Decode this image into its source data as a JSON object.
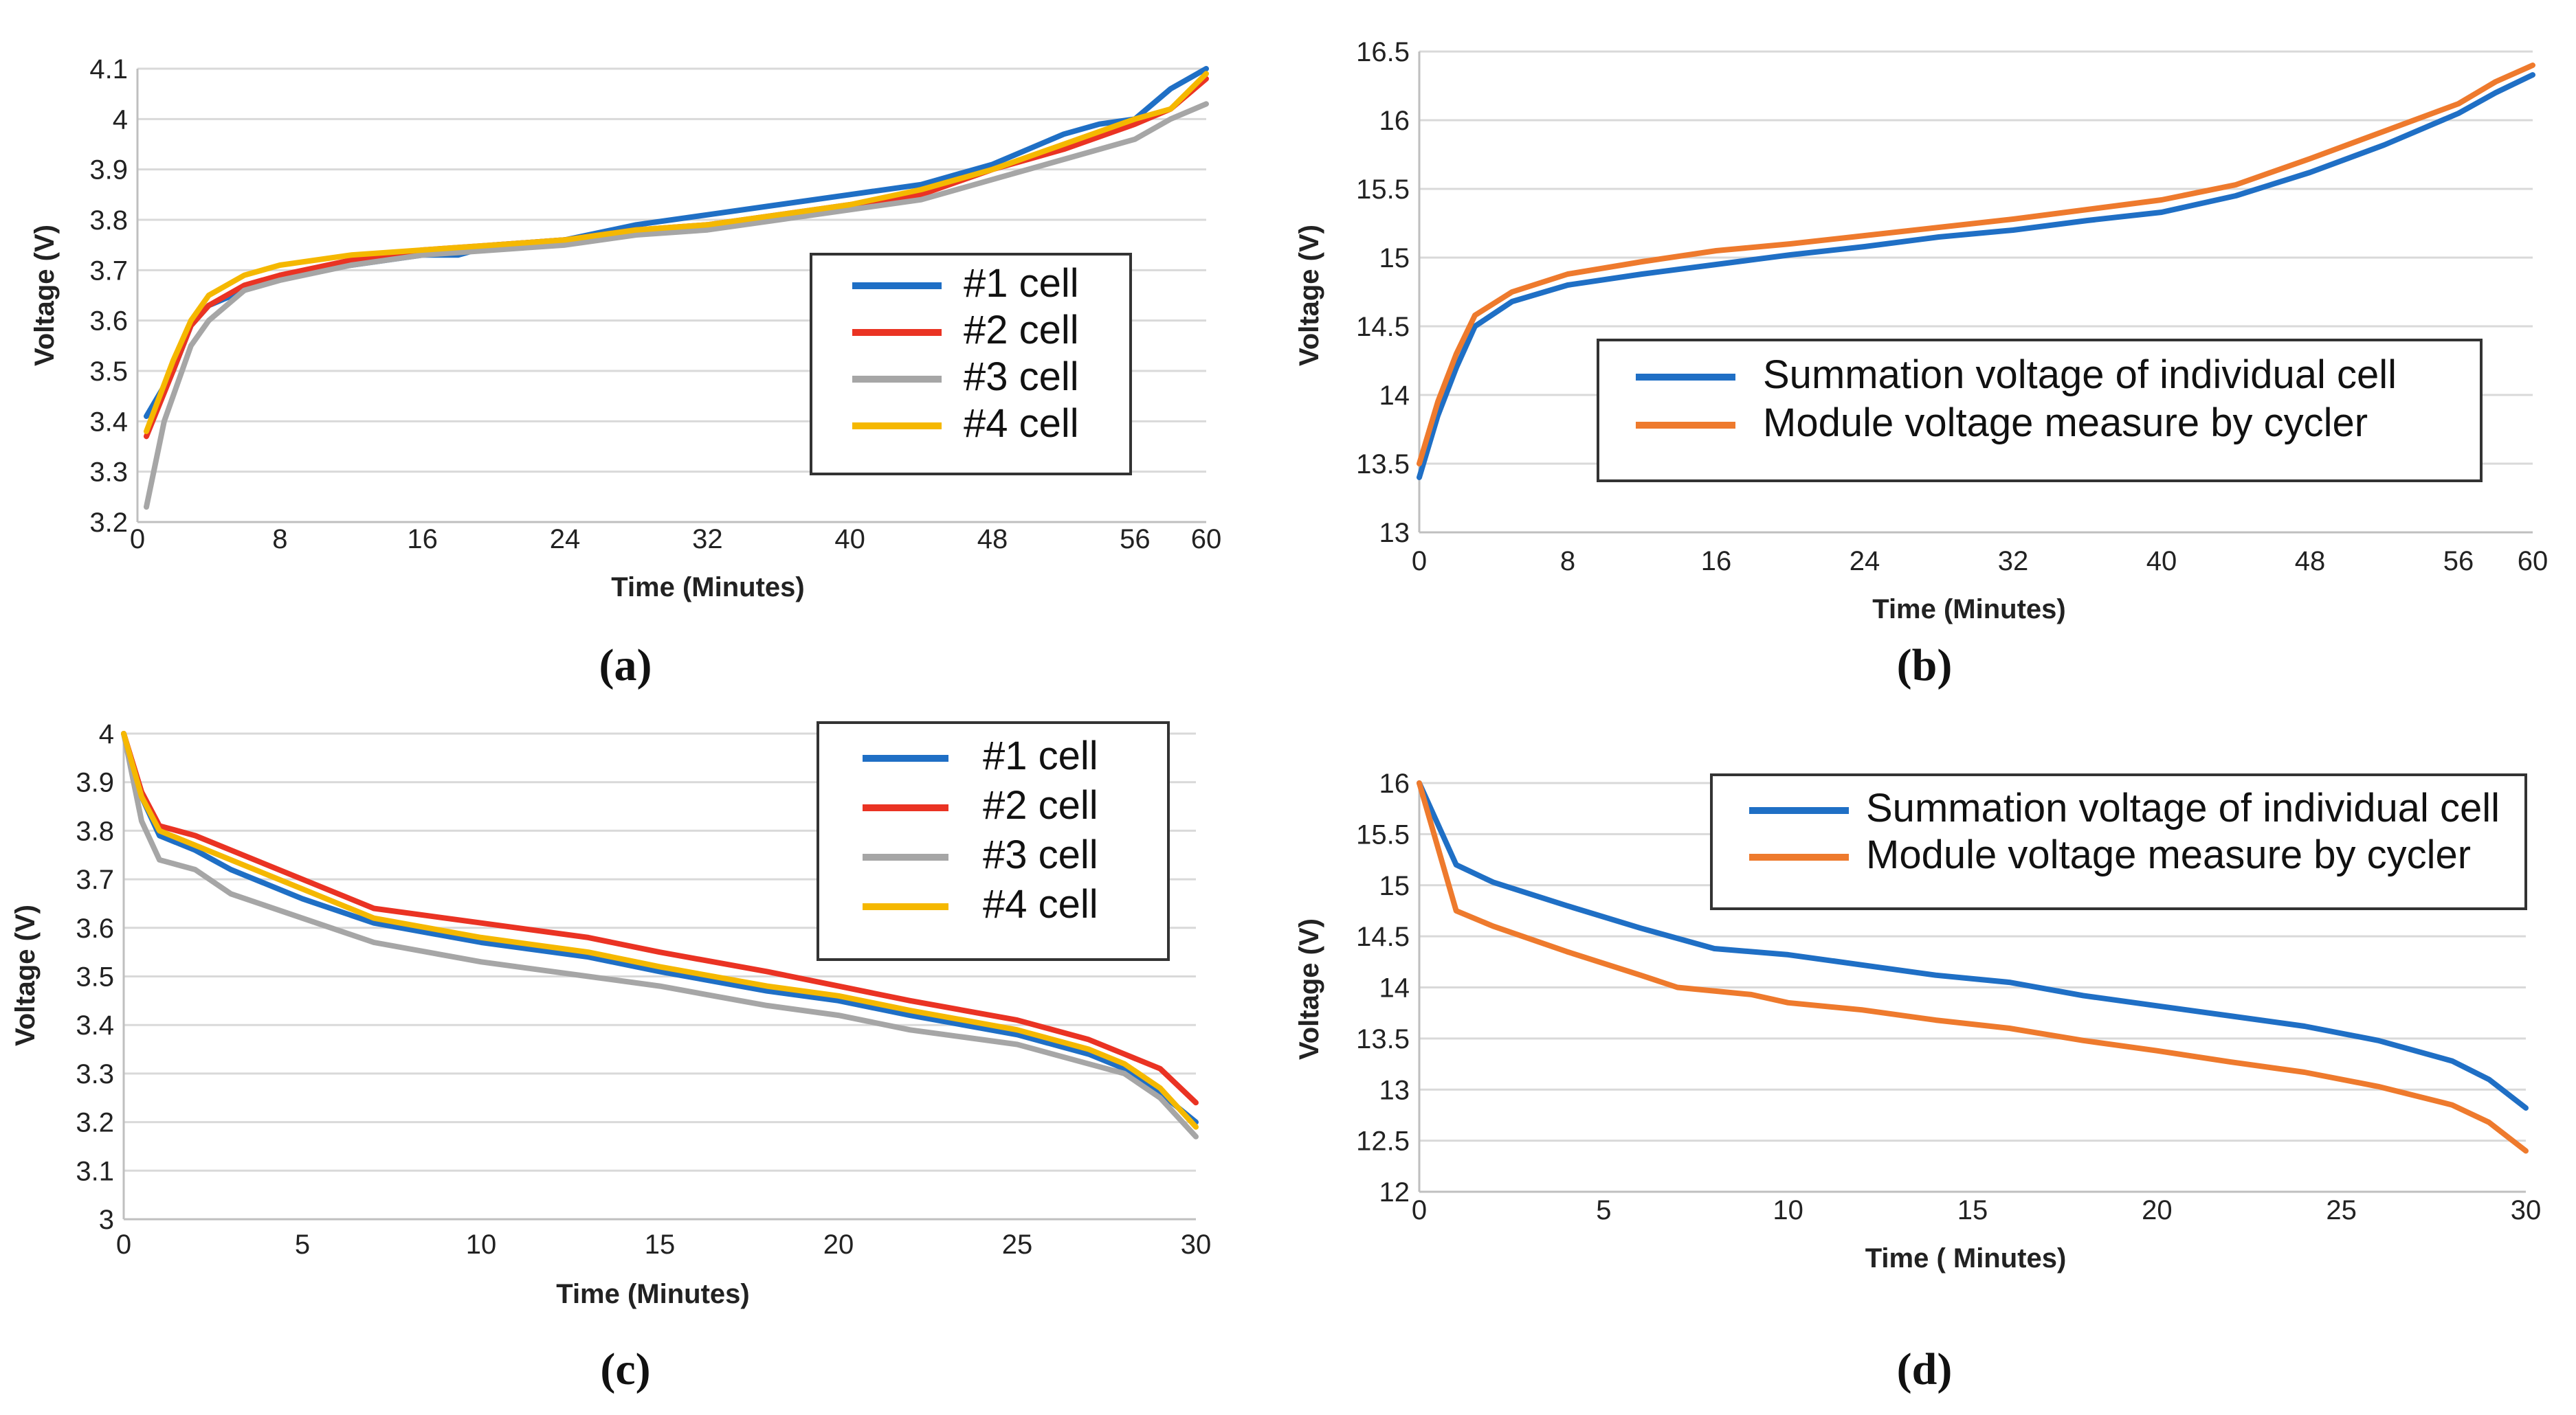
{
  "colors": {
    "blue": "#1f6fc5",
    "red": "#ea3323",
    "gray": "#a6a6a6",
    "yellow": "#f5b800",
    "orange": "#ee7a2d",
    "grid": "#d9d9d9",
    "axis": "#bfbfbf"
  },
  "chart_data": [
    {
      "panel": "(a)",
      "type": "line",
      "title": "",
      "xlabel": "Time (Minutes)",
      "ylabel": "Voltage (V)",
      "xlim": [
        0,
        60
      ],
      "ylim": [
        3.2,
        4.1
      ],
      "xticks": [
        0,
        8,
        16,
        24,
        32,
        40,
        48,
        56,
        60
      ],
      "yticks": [
        3.2,
        3.3,
        3.4,
        3.5,
        3.6,
        3.7,
        3.8,
        3.9,
        4,
        4.1
      ],
      "grid": "horizontal",
      "legend_position": "right-middle",
      "series": [
        {
          "name": "#1 cell",
          "color": "blue",
          "points": [
            [
              0.5,
              3.41
            ],
            [
              2,
              3.5
            ],
            [
              3,
              3.59
            ],
            [
              4,
              3.63
            ],
            [
              6,
              3.66
            ],
            [
              8,
              3.69
            ],
            [
              12,
              3.71
            ],
            [
              16,
              3.73
            ],
            [
              18,
              3.73
            ],
            [
              20,
              3.75
            ],
            [
              24,
              3.76
            ],
            [
              28,
              3.79
            ],
            [
              32,
              3.81
            ],
            [
              36,
              3.83
            ],
            [
              40,
              3.85
            ],
            [
              44,
              3.87
            ],
            [
              48,
              3.91
            ],
            [
              52,
              3.97
            ],
            [
              54,
              3.99
            ],
            [
              56,
              4.0
            ],
            [
              58,
              4.06
            ],
            [
              60,
              4.1
            ]
          ]
        },
        {
          "name": "#2 cell",
          "color": "red",
          "points": [
            [
              0.5,
              3.37
            ],
            [
              2,
              3.5
            ],
            [
              3,
              3.59
            ],
            [
              4,
              3.63
            ],
            [
              6,
              3.67
            ],
            [
              8,
              3.69
            ],
            [
              12,
              3.72
            ],
            [
              16,
              3.74
            ],
            [
              20,
              3.75
            ],
            [
              24,
              3.76
            ],
            [
              28,
              3.78
            ],
            [
              32,
              3.79
            ],
            [
              36,
              3.81
            ],
            [
              40,
              3.83
            ],
            [
              44,
              3.85
            ],
            [
              48,
              3.9
            ],
            [
              52,
              3.94
            ],
            [
              56,
              3.99
            ],
            [
              58,
              4.02
            ],
            [
              60,
              4.08
            ]
          ]
        },
        {
          "name": "#3 cell",
          "color": "gray",
          "points": [
            [
              0.5,
              3.23
            ],
            [
              1.5,
              3.4
            ],
            [
              3,
              3.55
            ],
            [
              4,
              3.6
            ],
            [
              6,
              3.66
            ],
            [
              8,
              3.68
            ],
            [
              12,
              3.71
            ],
            [
              16,
              3.73
            ],
            [
              20,
              3.74
            ],
            [
              24,
              3.75
            ],
            [
              28,
              3.77
            ],
            [
              32,
              3.78
            ],
            [
              36,
              3.8
            ],
            [
              40,
              3.82
            ],
            [
              44,
              3.84
            ],
            [
              48,
              3.88
            ],
            [
              52,
              3.92
            ],
            [
              56,
              3.96
            ],
            [
              58,
              4.0
            ],
            [
              60,
              4.03
            ]
          ]
        },
        {
          "name": "#4 cell",
          "color": "yellow",
          "points": [
            [
              0.5,
              3.38
            ],
            [
              2,
              3.52
            ],
            [
              3,
              3.6
            ],
            [
              4,
              3.65
            ],
            [
              6,
              3.69
            ],
            [
              8,
              3.71
            ],
            [
              12,
              3.73
            ],
            [
              16,
              3.74
            ],
            [
              20,
              3.75
            ],
            [
              24,
              3.76
            ],
            [
              28,
              3.78
            ],
            [
              32,
              3.79
            ],
            [
              36,
              3.81
            ],
            [
              40,
              3.83
            ],
            [
              44,
              3.86
            ],
            [
              48,
              3.9
            ],
            [
              52,
              3.95
            ],
            [
              56,
              4.0
            ],
            [
              58,
              4.02
            ],
            [
              60,
              4.09
            ]
          ]
        }
      ]
    },
    {
      "panel": "(b)",
      "type": "line",
      "title": "",
      "xlabel": "Time (Minutes)",
      "ylabel": "Voltage (V)",
      "xlim": [
        0,
        60
      ],
      "ylim": [
        13,
        16.5
      ],
      "xticks": [
        0,
        8,
        16,
        24,
        32,
        40,
        48,
        56,
        60
      ],
      "yticks": [
        13,
        13.5,
        14,
        14.5,
        15,
        15.5,
        16,
        16.5
      ],
      "grid": "horizontal",
      "legend_position": "right-middle",
      "series": [
        {
          "name": "Summation voltage of individual cell",
          "color": "blue",
          "points": [
            [
              0,
              13.4
            ],
            [
              1,
              13.85
            ],
            [
              2,
              14.2
            ],
            [
              3,
              14.5
            ],
            [
              5,
              14.68
            ],
            [
              8,
              14.8
            ],
            [
              12,
              14.88
            ],
            [
              16,
              14.95
            ],
            [
              20,
              15.02
            ],
            [
              24,
              15.08
            ],
            [
              28,
              15.15
            ],
            [
              32,
              15.2
            ],
            [
              36,
              15.27
            ],
            [
              40,
              15.33
            ],
            [
              44,
              15.45
            ],
            [
              48,
              15.62
            ],
            [
              52,
              15.82
            ],
            [
              56,
              16.05
            ],
            [
              58,
              16.2
            ],
            [
              60,
              16.33
            ]
          ]
        },
        {
          "name": "Module voltage measure by cycler",
          "color": "orange",
          "points": [
            [
              0,
              13.5
            ],
            [
              1,
              13.95
            ],
            [
              2,
              14.3
            ],
            [
              3,
              14.58
            ],
            [
              5,
              14.75
            ],
            [
              8,
              14.88
            ],
            [
              12,
              14.97
            ],
            [
              16,
              15.05
            ],
            [
              20,
              15.1
            ],
            [
              24,
              15.16
            ],
            [
              28,
              15.22
            ],
            [
              32,
              15.28
            ],
            [
              36,
              15.35
            ],
            [
              40,
              15.42
            ],
            [
              44,
              15.53
            ],
            [
              48,
              15.72
            ],
            [
              52,
              15.92
            ],
            [
              56,
              16.12
            ],
            [
              58,
              16.28
            ],
            [
              60,
              16.4
            ]
          ]
        }
      ]
    },
    {
      "panel": "(c)",
      "type": "line",
      "title": "",
      "xlabel": "Time (Minutes)",
      "ylabel": "Voltage (V)",
      "xlim": [
        0,
        30
      ],
      "ylim": [
        3,
        4
      ],
      "xticks": [
        0,
        5,
        10,
        15,
        20,
        25,
        30
      ],
      "yticks": [
        3,
        3.1,
        3.2,
        3.3,
        3.4,
        3.5,
        3.6,
        3.7,
        3.8,
        3.9,
        4
      ],
      "grid": "horizontal",
      "legend_position": "top-right",
      "series": [
        {
          "name": "#1 cell",
          "color": "blue",
          "points": [
            [
              0,
              4.0
            ],
            [
              0.5,
              3.87
            ],
            [
              1,
              3.79
            ],
            [
              2,
              3.76
            ],
            [
              3,
              3.72
            ],
            [
              5,
              3.66
            ],
            [
              7,
              3.61
            ],
            [
              10,
              3.57
            ],
            [
              13,
              3.54
            ],
            [
              15,
              3.51
            ],
            [
              18,
              3.47
            ],
            [
              20,
              3.45
            ],
            [
              22,
              3.42
            ],
            [
              25,
              3.38
            ],
            [
              27,
              3.34
            ],
            [
              28,
              3.31
            ],
            [
              29,
              3.26
            ],
            [
              30,
              3.2
            ]
          ]
        },
        {
          "name": "#2 cell",
          "color": "red",
          "points": [
            [
              0,
              4.0
            ],
            [
              0.5,
              3.88
            ],
            [
              1,
              3.81
            ],
            [
              2,
              3.79
            ],
            [
              3,
              3.76
            ],
            [
              5,
              3.7
            ],
            [
              7,
              3.64
            ],
            [
              10,
              3.61
            ],
            [
              13,
              3.58
            ],
            [
              15,
              3.55
            ],
            [
              18,
              3.51
            ],
            [
              20,
              3.48
            ],
            [
              22,
              3.45
            ],
            [
              25,
              3.41
            ],
            [
              27,
              3.37
            ],
            [
              28,
              3.34
            ],
            [
              29,
              3.31
            ],
            [
              30,
              3.24
            ]
          ]
        },
        {
          "name": "#3 cell",
          "color": "gray",
          "points": [
            [
              0,
              4.0
            ],
            [
              0.5,
              3.82
            ],
            [
              1,
              3.74
            ],
            [
              2,
              3.72
            ],
            [
              3,
              3.67
            ],
            [
              5,
              3.62
            ],
            [
              7,
              3.57
            ],
            [
              10,
              3.53
            ],
            [
              13,
              3.5
            ],
            [
              15,
              3.48
            ],
            [
              18,
              3.44
            ],
            [
              20,
              3.42
            ],
            [
              22,
              3.39
            ],
            [
              25,
              3.36
            ],
            [
              27,
              3.32
            ],
            [
              28,
              3.3
            ],
            [
              29,
              3.25
            ],
            [
              30,
              3.17
            ]
          ]
        },
        {
          "name": "#4 cell",
          "color": "yellow",
          "points": [
            [
              0,
              4.0
            ],
            [
              0.5,
              3.87
            ],
            [
              1,
              3.8
            ],
            [
              2,
              3.77
            ],
            [
              3,
              3.74
            ],
            [
              5,
              3.68
            ],
            [
              7,
              3.62
            ],
            [
              10,
              3.58
            ],
            [
              13,
              3.55
            ],
            [
              15,
              3.52
            ],
            [
              18,
              3.48
            ],
            [
              20,
              3.46
            ],
            [
              22,
              3.43
            ],
            [
              25,
              3.39
            ],
            [
              27,
              3.35
            ],
            [
              28,
              3.32
            ],
            [
              29,
              3.27
            ],
            [
              30,
              3.19
            ]
          ]
        }
      ]
    },
    {
      "panel": "(d)",
      "type": "line",
      "title": "",
      "xlabel": "Time ( Minutes)",
      "ylabel": "Voltage (V)",
      "xlim": [
        0,
        30
      ],
      "ylim": [
        12,
        16
      ],
      "xticks": [
        0,
        5,
        10,
        15,
        20,
        25,
        30
      ],
      "yticks": [
        12,
        12.5,
        13,
        13.5,
        14,
        14.5,
        15,
        15.5,
        16
      ],
      "grid": "horizontal",
      "legend_position": "top-right",
      "series": [
        {
          "name": "Summation voltage of individual cell",
          "color": "blue",
          "points": [
            [
              0,
              16.0
            ],
            [
              1,
              15.2
            ],
            [
              2,
              15.03
            ],
            [
              4,
              14.8
            ],
            [
              6,
              14.58
            ],
            [
              8,
              14.38
            ],
            [
              10,
              14.32
            ],
            [
              12,
              14.22
            ],
            [
              14,
              14.12
            ],
            [
              16,
              14.05
            ],
            [
              18,
              13.92
            ],
            [
              20,
              13.82
            ],
            [
              22,
              13.72
            ],
            [
              24,
              13.62
            ],
            [
              26,
              13.48
            ],
            [
              28,
              13.28
            ],
            [
              29,
              13.1
            ],
            [
              30,
              12.82
            ]
          ]
        },
        {
          "name": "Module voltage measure by cycler",
          "color": "orange",
          "points": [
            [
              0,
              16.0
            ],
            [
              1,
              14.75
            ],
            [
              2,
              14.6
            ],
            [
              4,
              14.35
            ],
            [
              6,
              14.12
            ],
            [
              7,
              14.0
            ],
            [
              9,
              13.93
            ],
            [
              10,
              13.85
            ],
            [
              12,
              13.78
            ],
            [
              14,
              13.68
            ],
            [
              16,
              13.6
            ],
            [
              18,
              13.48
            ],
            [
              20,
              13.38
            ],
            [
              22,
              13.27
            ],
            [
              24,
              13.17
            ],
            [
              26,
              13.03
            ],
            [
              28,
              12.85
            ],
            [
              29,
              12.68
            ],
            [
              30,
              12.4
            ]
          ]
        }
      ]
    }
  ]
}
